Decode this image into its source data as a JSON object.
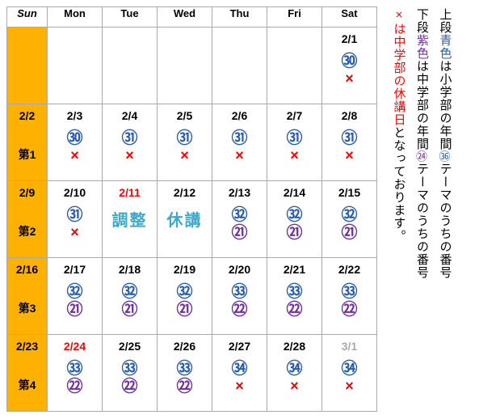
{
  "headers": {
    "sun": "Sun",
    "mon": "Mon",
    "tue": "Tue",
    "wed": "Wed",
    "thu": "Thu",
    "fri": "Fri",
    "sat": "Sat"
  },
  "week_labels": [
    "第1",
    "第2",
    "第3",
    "第4"
  ],
  "legend": {
    "line1_a": "上段",
    "line1_b": "青色",
    "line1_c": "は小学部の年間",
    "line1_d": "㊱",
    "line1_e": "テーマのうちの番号",
    "line2_a": "下段",
    "line2_b": "紫色",
    "line2_c": "は中学部の年間",
    "line2_d": "㉔",
    "line2_e": "テーマのうちの番号",
    "line3_a": "×",
    "line3_b": "は中学部の休講日",
    "line3_c": "となっております。"
  },
  "dates": {
    "r0": {
      "sat": "2/1"
    },
    "r1": {
      "sun": "2/2",
      "mon": "2/3",
      "tue": "2/4",
      "wed": "2/5",
      "thu": "2/6",
      "fri": "2/7",
      "sat": "2/8"
    },
    "r2": {
      "sun": "2/9",
      "mon": "2/10",
      "tue": "2/11",
      "wed": "2/12",
      "thu": "2/13",
      "fri": "2/14",
      "sat": "2/15"
    },
    "r3": {
      "sun": "2/16",
      "mon": "2/17",
      "tue": "2/18",
      "wed": "2/19",
      "thu": "2/20",
      "fri": "2/21",
      "sat": "2/22"
    },
    "r4": {
      "sun": "2/23",
      "mon": "2/24",
      "tue": "2/25",
      "wed": "2/26",
      "thu": "2/27",
      "fri": "2/28",
      "sat": "3/1"
    }
  },
  "marks": {
    "r0": {
      "sat": {
        "blue": "㉚",
        "x": "×"
      }
    },
    "r1": {
      "mon": {
        "blue": "㉚",
        "x": "×"
      },
      "tue": {
        "blue": "㉛",
        "x": "×"
      },
      "wed": {
        "blue": "㉛",
        "x": "×"
      },
      "thu": {
        "blue": "㉛",
        "x": "×"
      },
      "fri": {
        "blue": "㉛",
        "x": "×"
      },
      "sat": {
        "blue": "㉛",
        "x": "×"
      }
    },
    "r2": {
      "mon": {
        "blue": "㉛",
        "x": "×"
      },
      "tue": {
        "label": "調整"
      },
      "wed": {
        "label": "休講"
      },
      "thu": {
        "blue": "㉜",
        "purple": "㉑"
      },
      "fri": {
        "blue": "㉜",
        "purple": "㉑"
      },
      "sat": {
        "blue": "㉜",
        "purple": "㉑"
      }
    },
    "r3": {
      "mon": {
        "blue": "㉜",
        "purple": "㉑"
      },
      "tue": {
        "blue": "㉜",
        "purple": "㉑"
      },
      "wed": {
        "blue": "㉜",
        "purple": "㉑"
      },
      "thu": {
        "blue": "㉝",
        "purple": "㉒"
      },
      "fri": {
        "blue": "㉝",
        "purple": "㉒"
      },
      "sat": {
        "blue": "㉝",
        "purple": "㉒"
      }
    },
    "r4": {
      "mon": {
        "blue": "㉝",
        "purple": "㉒"
      },
      "tue": {
        "blue": "㉝",
        "purple": "㉒"
      },
      "wed": {
        "blue": "㉝",
        "purple": "㉒"
      },
      "thu": {
        "blue": "㉞",
        "x": "×"
      },
      "fri": {
        "blue": "㉞",
        "x": "×"
      },
      "sat": {
        "blue": "㉞",
        "x": "×"
      }
    }
  },
  "colors": {
    "sunday_bg": "#ffb100",
    "border": "#aaaaaa",
    "blue": "#2a5db0",
    "purple": "#7030a0",
    "red": "#ff0000",
    "teal": "#3fa9c9",
    "grey": "#aaaaaa",
    "black": "#000000"
  }
}
